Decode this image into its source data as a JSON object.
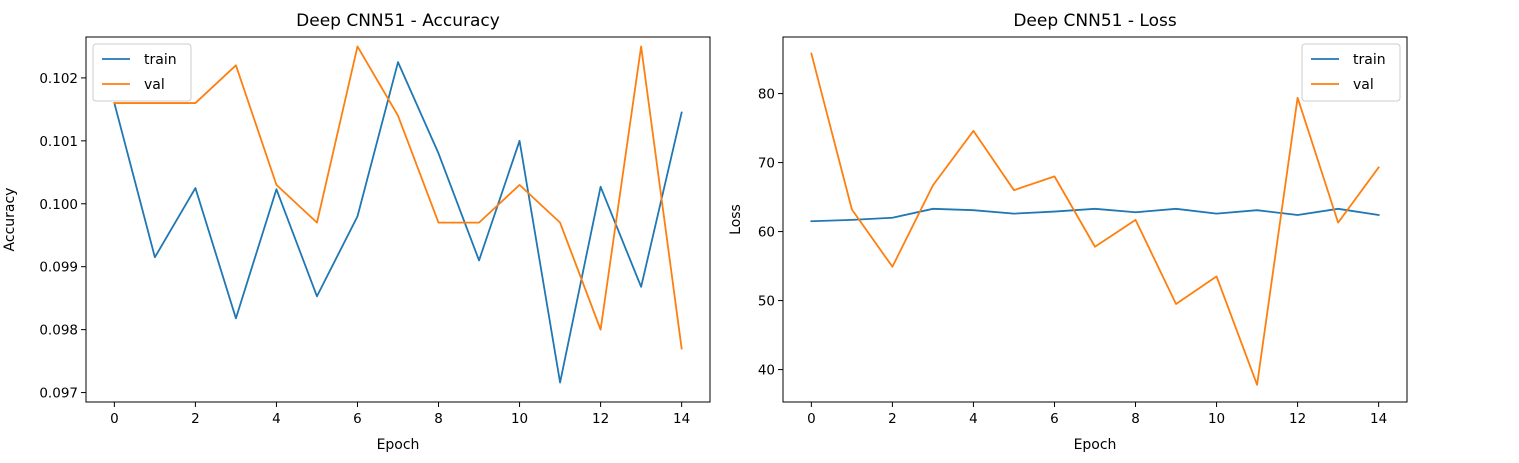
{
  "chart_data": [
    {
      "type": "line",
      "title": "Deep CNN51 - Accuracy",
      "xlabel": "Epoch",
      "ylabel": "Accuracy",
      "x": [
        0,
        1,
        2,
        3,
        4,
        5,
        6,
        7,
        8,
        9,
        10,
        11,
        12,
        13,
        14
      ],
      "xticks": [
        0,
        2,
        4,
        6,
        8,
        10,
        12,
        14
      ],
      "xlim": [
        -0.7,
        14.7
      ],
      "ylim": [
        0.09685,
        0.10265
      ],
      "yticks": [
        0.097,
        0.098,
        0.099,
        0.1,
        0.101,
        0.102
      ],
      "ytick_labels": [
        "0.097",
        "0.098",
        "0.099",
        "0.100",
        "0.101",
        "0.102"
      ],
      "legend_loc": "upper left",
      "series": [
        {
          "name": "train",
          "color": "#1f77b4",
          "values": [
            0.1016,
            0.09915,
            0.10025,
            0.09818,
            0.10023,
            0.09853,
            0.0998,
            0.10225,
            0.1008,
            0.0991,
            0.101,
            0.09716,
            0.10027,
            0.09868,
            0.10145
          ]
        },
        {
          "name": "val",
          "color": "#ff7f0e",
          "values": [
            0.1016,
            0.1016,
            0.1016,
            0.1022,
            0.1003,
            0.0997,
            0.1025,
            0.1014,
            0.0997,
            0.0997,
            0.1003,
            0.0997,
            0.098,
            0.1025,
            0.0977
          ]
        }
      ]
    },
    {
      "type": "line",
      "title": "Deep CNN51 - Loss",
      "xlabel": "Epoch",
      "ylabel": "Loss",
      "x": [
        0,
        1,
        2,
        3,
        4,
        5,
        6,
        7,
        8,
        9,
        10,
        11,
        12,
        13,
        14
      ],
      "xticks": [
        0,
        2,
        4,
        6,
        8,
        10,
        12,
        14
      ],
      "xlim": [
        -0.7,
        14.7
      ],
      "ylim": [
        35.3,
        88.2
      ],
      "yticks": [
        40,
        50,
        60,
        70,
        80
      ],
      "ytick_labels": [
        "40",
        "50",
        "60",
        "70",
        "80"
      ],
      "legend_loc": "upper right",
      "series": [
        {
          "name": "train",
          "color": "#1f77b4",
          "values": [
            61.5,
            61.7,
            62.0,
            63.3,
            63.1,
            62.6,
            62.9,
            63.3,
            62.8,
            63.3,
            62.6,
            63.1,
            62.4,
            63.3,
            62.4
          ]
        },
        {
          "name": "val",
          "color": "#ff7f0e",
          "values": [
            85.8,
            63.2,
            54.9,
            66.7,
            74.6,
            66.0,
            68.0,
            57.8,
            61.7,
            49.5,
            53.5,
            37.8,
            79.4,
            61.3,
            69.3
          ]
        }
      ]
    }
  ]
}
